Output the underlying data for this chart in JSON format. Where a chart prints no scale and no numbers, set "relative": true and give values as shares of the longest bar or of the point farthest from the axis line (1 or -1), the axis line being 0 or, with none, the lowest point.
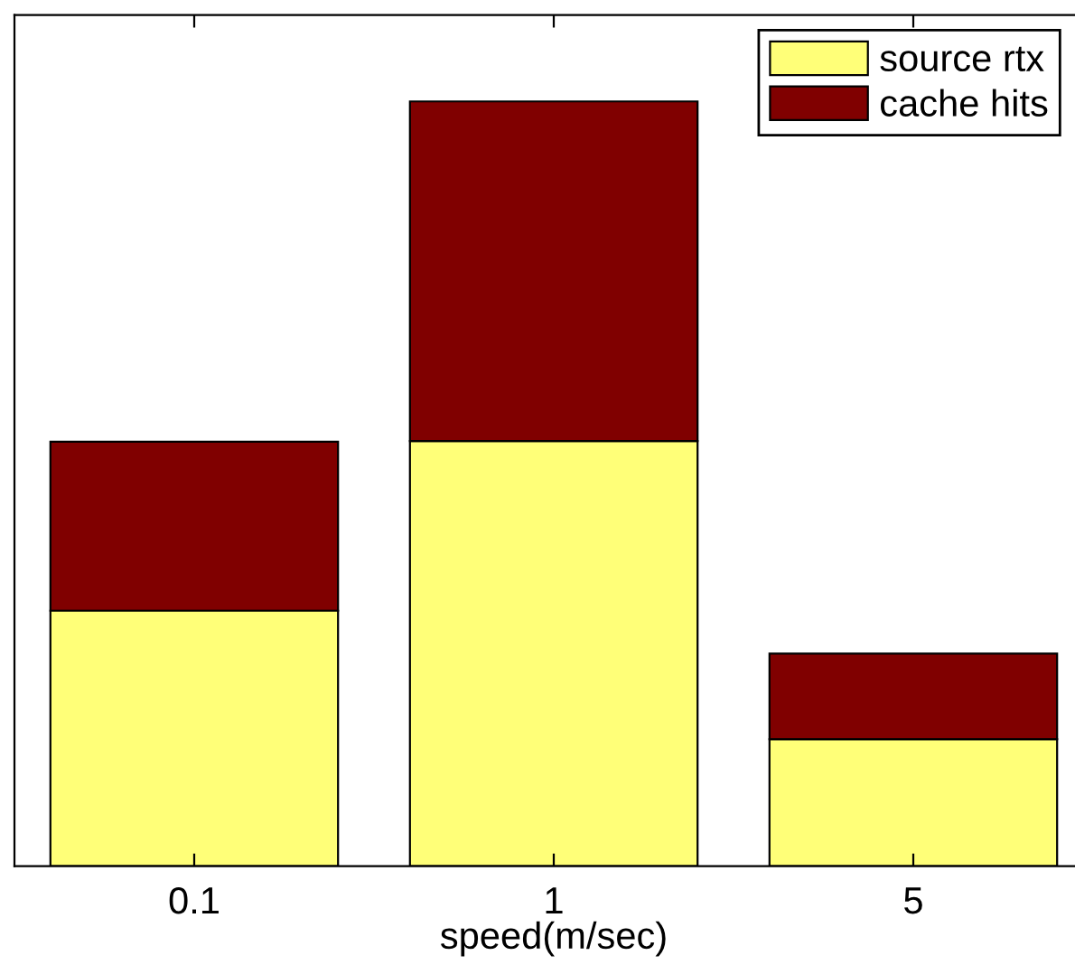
{
  "chart_data": {
    "type": "bar",
    "stacked": true,
    "relative": true,
    "xlabel": "speed(m/sec)",
    "categories": [
      "0.1",
      "1",
      "5"
    ],
    "series": [
      {
        "name": "source rtx",
        "color": "#ffff78",
        "values": [
          0.334,
          0.556,
          0.166
        ]
      },
      {
        "name": "cache hits",
        "color": "#800000",
        "values": [
          0.221,
          0.444,
          0.112
        ]
      }
    ],
    "legend": "top right",
    "grid": false
  }
}
